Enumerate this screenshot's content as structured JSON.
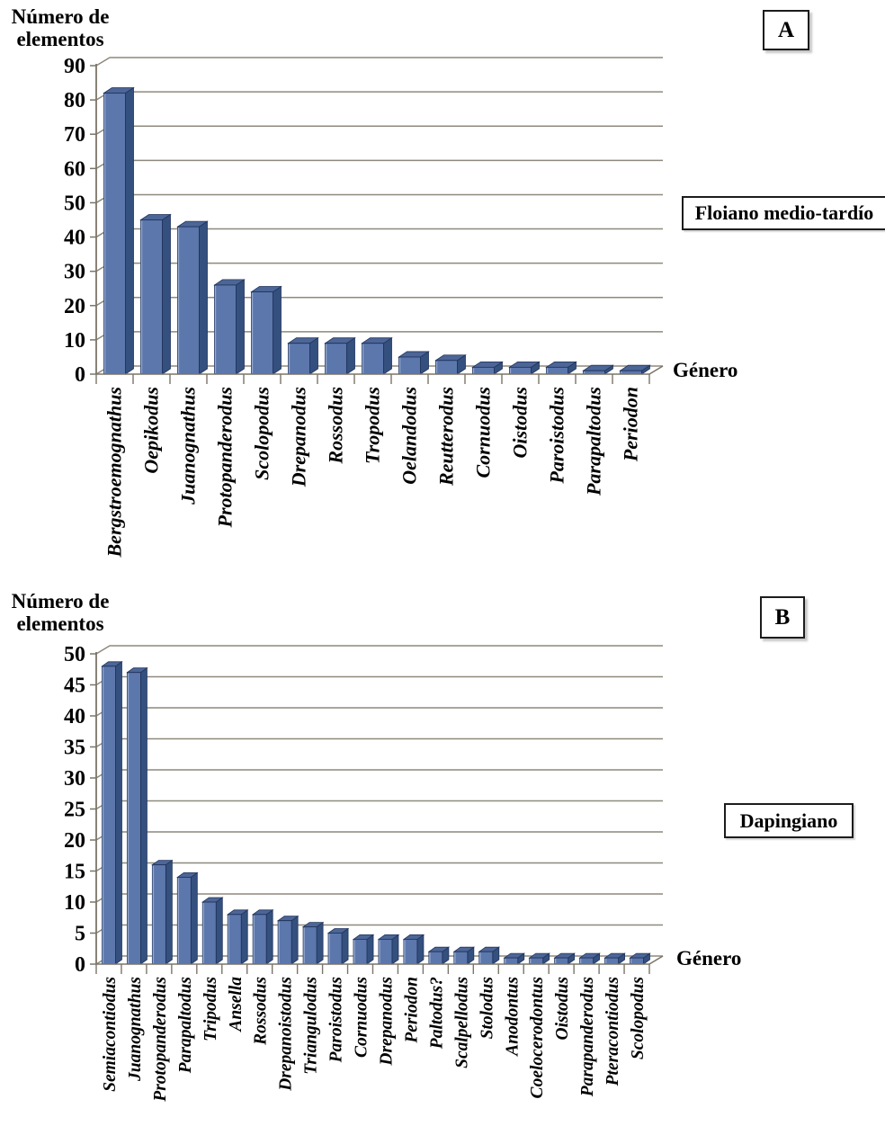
{
  "colors": {
    "background": "#ffffff",
    "text": "#000000",
    "grid": "#8e897d",
    "axis": "#7a7568",
    "bar_front": "#5b77ac",
    "bar_top": "#4c6697",
    "bar_side": "#34507e",
    "bar_stroke": "#22345c",
    "bar_highlight": "#93a9cf",
    "box_border": "#1c1c1c"
  },
  "chart_data": [
    {
      "type": "bar",
      "style": "3d-column",
      "panel_label": "A",
      "period_label": "Floiano medio-tardío",
      "ylabel": "Número de elementos",
      "ylabel_display": "Número de\nelementos",
      "xlabel": "Género",
      "categories": [
        "Bergstroemognathus",
        "Oepikodus",
        "Juanognathus",
        "Protopanderodus",
        "Scolopodus",
        "Drepanodus",
        "Rossodus",
        "Tropodus",
        "Oelandodus",
        "Reutterodus",
        "Cornuodus",
        "Oistodus",
        "Paroistodus",
        "Parapaltodus",
        "Periodon"
      ],
      "values": [
        82,
        45,
        43,
        26,
        24,
        9,
        9,
        9,
        5,
        4,
        2,
        2,
        2,
        1,
        1
      ],
      "ylim": [
        0,
        90
      ],
      "ytick_step": 10,
      "grid": true,
      "legend": "none"
    },
    {
      "type": "bar",
      "style": "3d-column",
      "panel_label": "B",
      "period_label": "Dapingiano",
      "ylabel": "Número de elementos",
      "ylabel_display": "Número de\nelementos",
      "xlabel": "Género",
      "categories": [
        "Semiacontiodus",
        "Juanognathus",
        "Protopanderodus",
        "Parapaltodus",
        "Tripodus",
        "Ansella",
        "Rossodus",
        "Drepanoistodus",
        "Triangulodus",
        "Paroistodus",
        "Cornuodus",
        "Drepanodus",
        "Periodon",
        "Paltodus?",
        "Scalpellodus",
        "Stolodus",
        "Anodontus",
        "Coelocerodontus",
        "Oistodus",
        "Parapanderodus",
        "Pteracontiodus",
        "Scolopodus"
      ],
      "values": [
        48,
        47,
        16,
        14,
        10,
        8,
        8,
        7,
        6,
        5,
        4,
        4,
        4,
        2,
        2,
        2,
        1,
        1,
        1,
        1,
        1,
        1
      ],
      "ylim": [
        0,
        50
      ],
      "ytick_step": 5,
      "grid": true,
      "legend": "none"
    }
  ]
}
